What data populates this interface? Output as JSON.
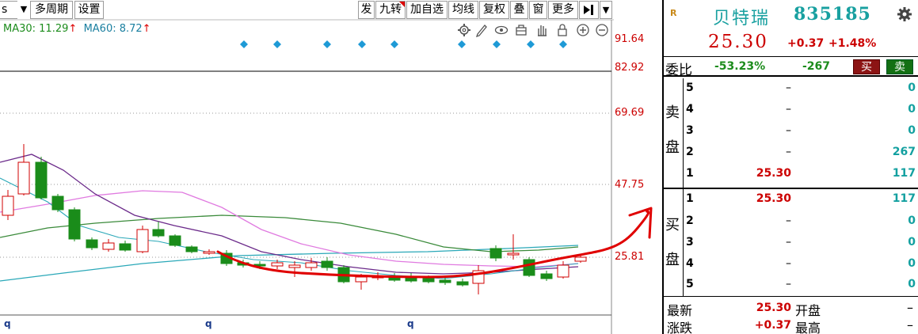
{
  "toolbar": {
    "left_fragment": "s",
    "multi_period": "多周期",
    "settings": "设置",
    "buttons": [
      "发",
      "九转",
      "加自选",
      "均线",
      "复权",
      "叠",
      "窗",
      "更多"
    ]
  },
  "indicator": {
    "ma30_label": "MA30: 11.29",
    "ma30_arrow": "↑",
    "ma60_label": "MA60: 8.72",
    "ma60_arrow": "↑"
  },
  "price_axis": [
    "91.64",
    "82.92",
    "69.69",
    "47.75",
    "25.81"
  ],
  "time_axis": [
    "q",
    "q",
    "q"
  ],
  "colors": {
    "up": "#d00000",
    "down": "#1a8c1a",
    "ma_pink": "#e07ae0",
    "ma_teal": "#2aa8b8",
    "ma_green": "#3a8a3a",
    "ma_purple": "#6b2a8a",
    "annotation": "#e00000",
    "marker": "#1e9ad6"
  },
  "quote": {
    "badge": "R",
    "name": "贝特瑞",
    "code": "835185",
    "price": "25.30",
    "change": "+0.37",
    "change_pct": "+1.48%",
    "ratio_label": "委比",
    "ratio_pct": "-53.23%",
    "ratio_diff": "-267",
    "buy_button": "买",
    "sell_button": "卖",
    "sell_side_label": [
      "卖",
      "盘"
    ],
    "buy_side_label": [
      "买",
      "盘"
    ],
    "asks": [
      {
        "level": "5",
        "price": "–",
        "volume": "0"
      },
      {
        "level": "4",
        "price": "–",
        "volume": "0"
      },
      {
        "level": "3",
        "price": "–",
        "volume": "0"
      },
      {
        "level": "2",
        "price": "–",
        "volume": "267"
      },
      {
        "level": "1",
        "price": "25.30",
        "volume": "117"
      }
    ],
    "bids": [
      {
        "level": "1",
        "price": "25.30",
        "volume": "117"
      },
      {
        "level": "2",
        "price": "–",
        "volume": "0"
      },
      {
        "level": "3",
        "price": "–",
        "volume": "0"
      },
      {
        "level": "4",
        "price": "–",
        "volume": "0"
      },
      {
        "level": "5",
        "price": "–",
        "volume": "0"
      }
    ],
    "stats": [
      {
        "k": "最新",
        "v": "25.30",
        "k2": "开盘",
        "v2": "–"
      },
      {
        "k": "涨跌",
        "v": "+0.37",
        "k2": "最高",
        "v2": "–"
      }
    ]
  }
}
